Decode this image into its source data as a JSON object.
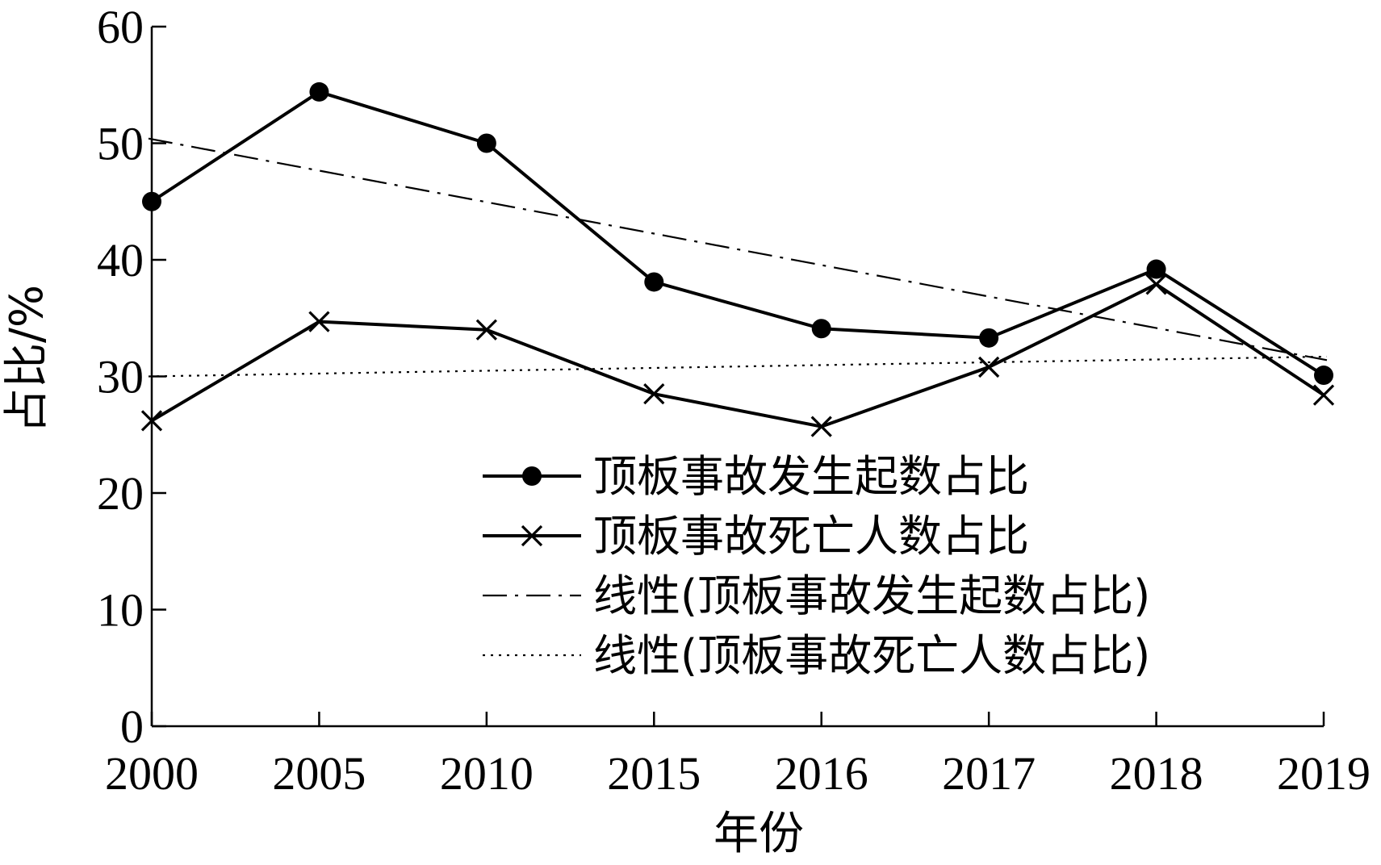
{
  "chart_data": {
    "type": "line",
    "title": "",
    "xlabel": "年份",
    "ylabel": "占比/%",
    "categories": [
      "2000",
      "2005",
      "2010",
      "2015",
      "2016",
      "2017",
      "2018",
      "2019"
    ],
    "ylim": [
      0,
      60
    ],
    "yticks": [
      "0",
      "10",
      "20",
      "30",
      "40",
      "50",
      "60"
    ],
    "grid": false,
    "legend_position": "right",
    "series": [
      {
        "name": "顶板事故发生起数占比",
        "marker": "circle",
        "line_style": "solid",
        "values": [
          45.0,
          54.4,
          50.0,
          38.1,
          34.1,
          33.3,
          39.2,
          30.1
        ]
      },
      {
        "name": "顶板事故死亡人数占比",
        "marker": "x",
        "line_style": "solid",
        "values": [
          26.2,
          34.7,
          34.0,
          28.5,
          25.7,
          30.8,
          37.9,
          28.4
        ]
      },
      {
        "name": "线性(顶板事故发生起数占比)",
        "marker": "none",
        "line_style": "dash-dot",
        "trend_of": 0,
        "values": [
          50.4,
          47.7,
          45.0,
          42.2,
          39.5,
          36.8,
          34.1,
          31.4
        ]
      },
      {
        "name": "线性(顶板事故死亡人数占比)",
        "marker": "none",
        "line_style": "dotted",
        "trend_of": 1,
        "values": [
          30.0,
          30.2,
          30.5,
          30.7,
          31.0,
          31.2,
          31.5,
          31.7
        ]
      }
    ],
    "colors": {
      "line": "#000000",
      "background": "#ffffff"
    }
  }
}
